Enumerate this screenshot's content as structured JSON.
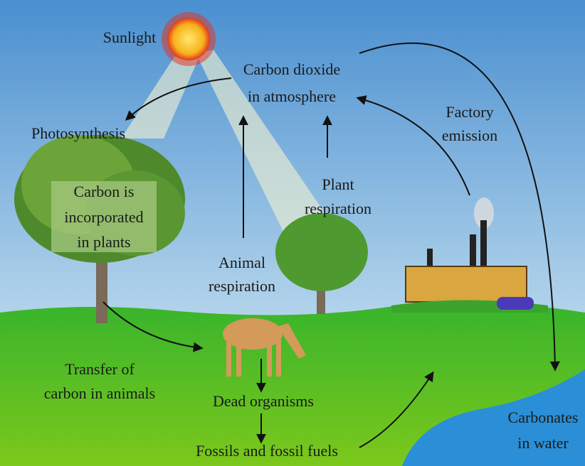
{
  "sunlight": "Sunlight",
  "carbon_dioxide": [
    "Carbon dioxide",
    "in atmosphere"
  ],
  "photosynthesis": "Photosynthesis",
  "factory_emission": [
    "Factory",
    "emission"
  ],
  "plant_respiration": [
    "Plant",
    "respiration"
  ],
  "carbon_in_plants": [
    "Carbon is",
    "incorporated",
    "in plants"
  ],
  "animal_respiration": [
    "Animal",
    "respiration"
  ],
  "transfer_in_animals": [
    "Transfer of",
    "carbon in animals"
  ],
  "dead_organisms": "Dead organisms",
  "fossils": "Fossils and fossil fuels",
  "carbonates": [
    "Carbonates",
    "in water"
  ]
}
